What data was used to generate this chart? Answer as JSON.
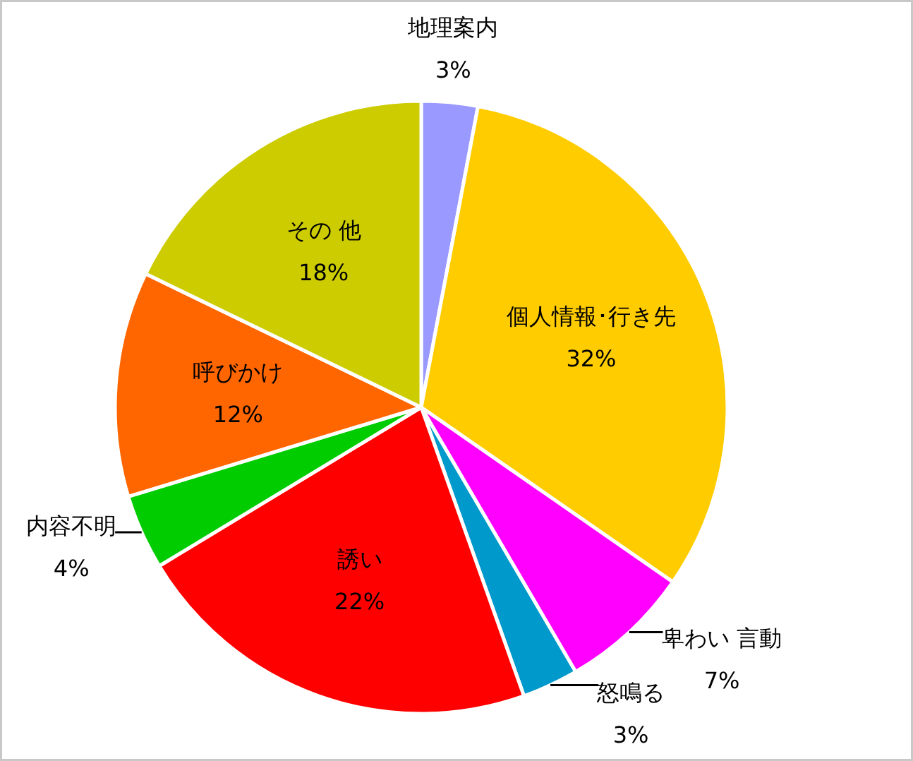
{
  "chart_data": {
    "type": "pie",
    "categories": [
      "地理案内",
      "個人情報･行き先",
      "卑わい 言動",
      "怒鳴る",
      "誘い",
      "内容不明",
      "呼びかけ",
      "その 他"
    ],
    "values": [
      3,
      32,
      7,
      3,
      22,
      4,
      12,
      18
    ],
    "value_labels": [
      "3%",
      "32%",
      "7%",
      "3%",
      "22%",
      "4%",
      "12%",
      "18%"
    ],
    "colors": [
      "#9999ff",
      "#ffcc00",
      "#ff00ff",
      "#0099cc",
      "#ff0000",
      "#00cc00",
      "#ff6600",
      "#cccc00"
    ]
  }
}
